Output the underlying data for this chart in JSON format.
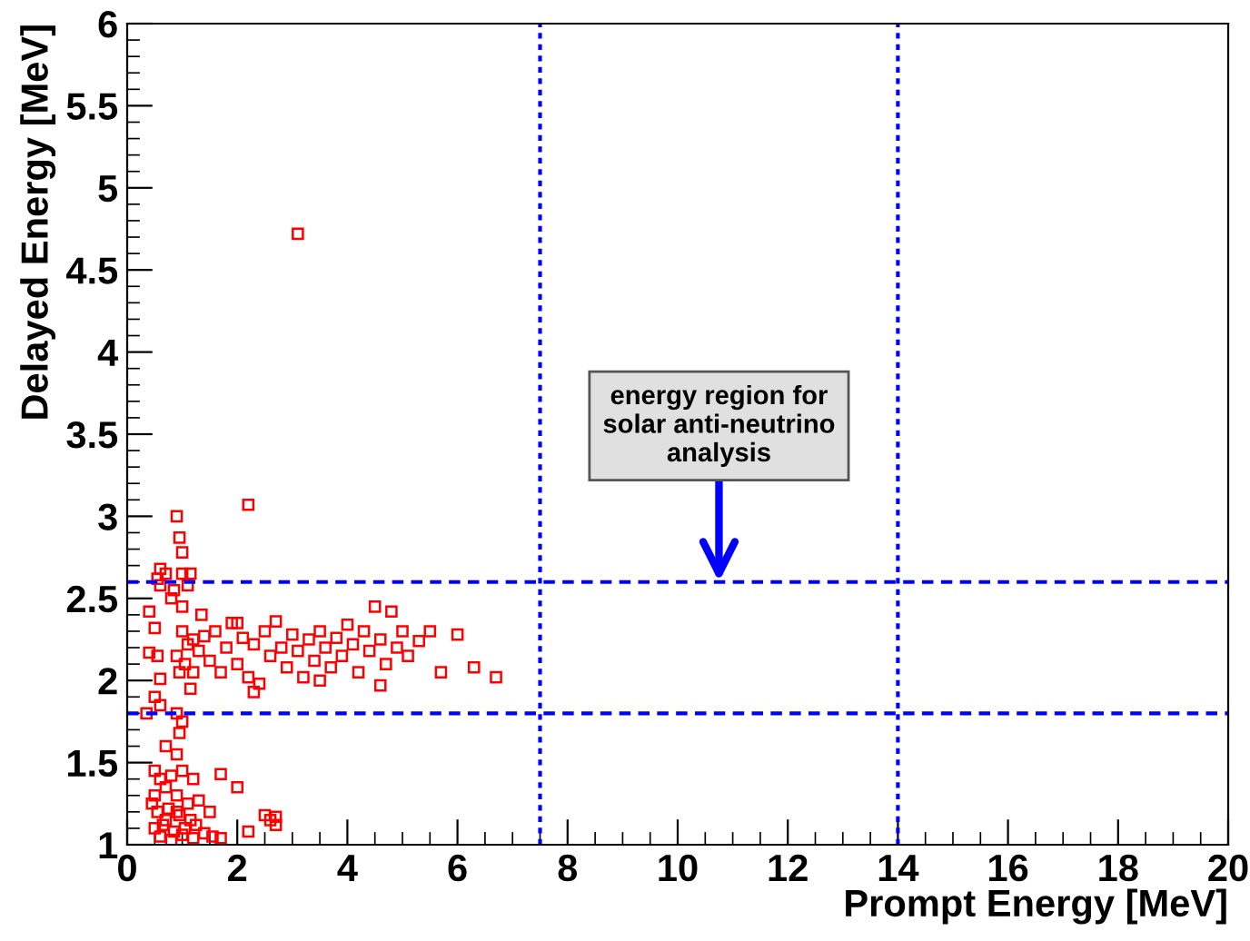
{
  "chart_data": {
    "type": "scatter",
    "xlabel": "Prompt Energy [MeV]",
    "ylabel": "Delayed Energy [MeV]",
    "xlim": [
      0,
      20
    ],
    "ylim": [
      1,
      6
    ],
    "xticks": [
      0,
      2,
      4,
      6,
      8,
      10,
      12,
      14,
      16,
      18,
      20
    ],
    "yticks": [
      1,
      1.5,
      2,
      2.5,
      3,
      3.5,
      4,
      4.5,
      5,
      5.5,
      6
    ],
    "grid": false,
    "marker": "square",
    "annotations": [
      {
        "text": "energy region for\nsolar anti-neutrino\nanalysis",
        "x": 10.75,
        "y": 2.6
      }
    ],
    "ref_lines": [
      {
        "axis": "x",
        "value": 7.5,
        "color": "#0000ff",
        "line_style": "dotted"
      },
      {
        "axis": "x",
        "value": 14,
        "color": "#0000ff",
        "line_style": "dotted"
      },
      {
        "axis": "y",
        "value": 1.8,
        "color": "#0000ff",
        "line_style": "dashed"
      },
      {
        "axis": "y",
        "value": 2.6,
        "color": "#0000ff",
        "line_style": "dashed"
      }
    ],
    "series": [
      {
        "color": "#ff0000",
        "x": [
          3.1,
          2.2,
          0.9,
          0.95,
          1.0,
          0.6,
          0.7,
          1.0,
          1.15,
          0.55,
          0.6,
          1.1,
          0.85,
          0.8,
          1.0,
          0.4,
          0.5,
          0.55,
          0.4,
          0.6,
          0.5,
          0.35,
          0.6,
          0.9,
          1.0,
          0.95,
          1.0,
          1.1,
          1.2,
          1.3,
          1.4,
          1.5,
          1.6,
          1.7,
          1.8,
          1.9,
          2.0,
          2.1,
          2.2,
          2.3,
          2.4,
          2.5,
          2.6,
          2.7,
          2.8,
          2.9,
          3.0,
          3.1,
          3.2,
          3.3,
          3.4,
          3.5,
          3.6,
          3.7,
          3.8,
          3.9,
          4.0,
          4.1,
          4.2,
          4.3,
          4.4,
          4.5,
          4.6,
          4.7,
          4.8,
          4.9,
          5.0,
          5.1,
          5.3,
          5.5,
          5.7,
          6.0,
          6.3,
          6.7,
          1.05,
          1.2,
          1.35,
          1.15,
          2.3,
          2.0,
          3.5,
          4.6,
          0.9,
          0.95,
          0.9,
          0.7,
          0.5,
          0.6,
          0.8,
          1.0,
          1.2,
          0.5,
          0.7,
          0.9,
          1.1,
          0.55,
          0.75,
          0.95,
          1.15,
          0.5,
          0.65,
          0.85,
          1.05,
          1.25,
          0.6,
          0.8,
          1.0,
          1.2,
          0.7,
          0.9,
          1.4,
          1.55,
          1.7,
          2.0,
          2.2,
          2.5,
          2.6,
          2.7,
          2.7,
          1.5,
          1.3,
          0.45,
          1.7
        ],
        "values": [
          4.72,
          3.07,
          3.0,
          2.87,
          2.78,
          2.68,
          2.65,
          2.65,
          2.65,
          2.62,
          2.58,
          2.58,
          2.55,
          2.5,
          2.45,
          2.42,
          2.32,
          2.15,
          2.17,
          2.01,
          1.9,
          1.8,
          1.85,
          1.8,
          1.75,
          1.68,
          2.3,
          2.22,
          2.25,
          2.18,
          2.27,
          2.12,
          2.3,
          2.05,
          2.2,
          2.35,
          2.1,
          2.26,
          2.02,
          2.22,
          1.98,
          2.3,
          2.15,
          2.36,
          2.2,
          2.08,
          2.28,
          2.18,
          2.02,
          2.25,
          2.12,
          2.3,
          2.2,
          2.08,
          2.26,
          2.15,
          2.34,
          2.22,
          2.05,
          2.3,
          2.18,
          2.45,
          2.25,
          2.1,
          2.42,
          2.2,
          2.3,
          2.15,
          2.24,
          2.3,
          2.05,
          2.28,
          2.08,
          2.02,
          2.1,
          2.05,
          2.4,
          1.95,
          1.93,
          2.35,
          2.0,
          1.97,
          2.15,
          2.05,
          1.55,
          1.6,
          1.45,
          1.4,
          1.42,
          1.45,
          1.4,
          1.3,
          1.35,
          1.3,
          1.25,
          1.2,
          1.22,
          1.18,
          1.15,
          1.1,
          1.12,
          1.08,
          1.1,
          1.12,
          1.05,
          1.03,
          1.06,
          1.04,
          1.15,
          1.2,
          1.07,
          1.05,
          1.04,
          1.35,
          1.08,
          1.18,
          1.15,
          1.12,
          1.17,
          1.2,
          1.27,
          1.25,
          1.43
        ]
      }
    ]
  }
}
